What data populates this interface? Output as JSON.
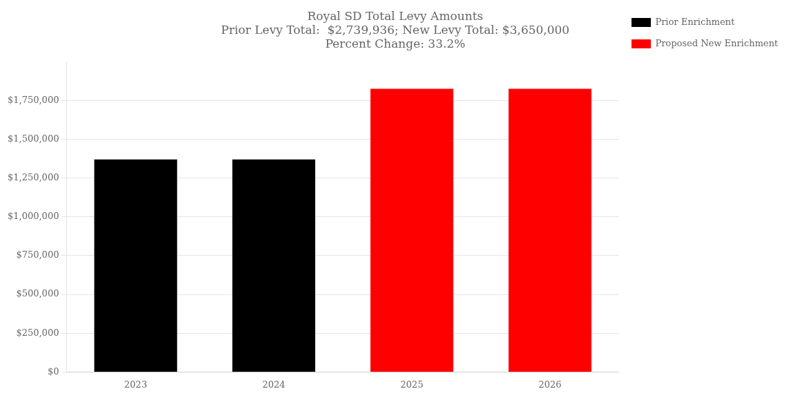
{
  "chart_data": {
    "type": "bar",
    "title": [
      "Royal SD Total Levy Amounts",
      "Prior Levy Total:  $2,739,936; New Levy Total: $3,650,000",
      "Percent Change: 33.2%"
    ],
    "categories": [
      "2023",
      "2024",
      "2025",
      "2026"
    ],
    "series": [
      {
        "name": "Prior Enrichment",
        "color": "#000000",
        "values": [
          1369968,
          1369968,
          null,
          null
        ]
      },
      {
        "name": "Proposed New Enrichment",
        "color": "#ff0000",
        "values": [
          null,
          null,
          1825000,
          1825000
        ]
      }
    ],
    "ylim": [
      0,
      2000000
    ],
    "yticks": [
      {
        "value": 0,
        "label": "$0"
      },
      {
        "value": 250000,
        "label": "$250,000"
      },
      {
        "value": 500000,
        "label": "$500,000"
      },
      {
        "value": 750000,
        "label": "$750,000"
      },
      {
        "value": 1000000,
        "label": "$1,000,000"
      },
      {
        "value": 1250000,
        "label": "$1,250,000"
      },
      {
        "value": 1500000,
        "label": "$1,500,000"
      },
      {
        "value": 1750000,
        "label": "$1,750,000"
      }
    ],
    "grid": true,
    "legend": "right"
  }
}
